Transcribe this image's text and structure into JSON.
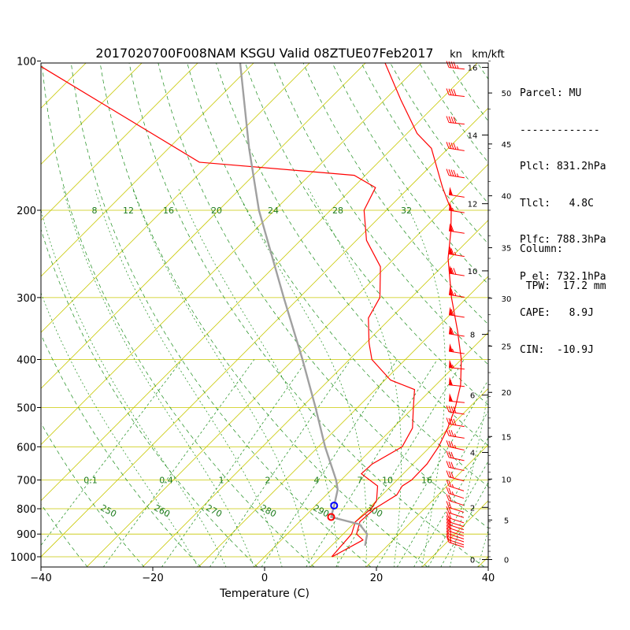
{
  "title": "2017020700F008NAM KSGU Valid 08ZTUE07Feb2017",
  "unit_kn": "kn",
  "unit_kmkft": "km/kft",
  "xlabel": "Temperature (C)",
  "parcel_panel": {
    "header": "Parcel: MU",
    "rule": "-------------",
    "lines": [
      "Plcl: 831.2hPa",
      "Tlcl:   4.8C",
      "Plfc: 788.3hPa",
      "P_el: 732.1hPa",
      "CAPE:   8.9J",
      "CIN:  -10.9J"
    ]
  },
  "column_panel": {
    "header": "Column:",
    "line": " TPW:  17.2 mm"
  },
  "colors": {
    "temperature": "#ff0000",
    "dewpoint": "#ff0000",
    "parcel": "#a0a0a0",
    "isotherm": "#c8c800",
    "dry_adiabat": "#1a8c1a",
    "moist_adiabat": "#1a8c1a",
    "mixing_ratio": "#1a8c1a",
    "lcl_marker": "#ff0000",
    "lfc_marker": "#0000ff"
  },
  "chart_data": {
    "type": "line",
    "subtype": "skew-T log-P diagram",
    "xlim": [
      -40,
      40
    ],
    "ylim_pressure": [
      1050,
      100
    ],
    "x_ticks": [
      "−40",
      "−20",
      "0",
      "20",
      "40"
    ],
    "x_tick_values": [
      -40,
      -20,
      0,
      20,
      40
    ],
    "pressure_ticks": [
      100,
      200,
      300,
      400,
      500,
      600,
      700,
      800,
      900,
      1000
    ],
    "km_ticks": [
      {
        "label": "0",
        "p": 1013
      },
      {
        "label": "2",
        "p": 795
      },
      {
        "label": "4",
        "p": 616
      },
      {
        "label": "6",
        "p": 472
      },
      {
        "label": "8",
        "p": 356
      },
      {
        "label": "10",
        "p": 265
      },
      {
        "label": "12",
        "p": 194
      },
      {
        "label": "14",
        "p": 141
      },
      {
        "label": "16",
        "p": 103
      }
    ],
    "kft_ticks": [
      {
        "label": "0",
        "p": 1013
      },
      {
        "label": "5",
        "p": 843
      },
      {
        "label": "10",
        "p": 697
      },
      {
        "label": "15",
        "p": 572
      },
      {
        "label": "20",
        "p": 466
      },
      {
        "label": "25",
        "p": 376
      },
      {
        "label": "30",
        "p": 301
      },
      {
        "label": "35",
        "p": 238
      },
      {
        "label": "40",
        "p": 187
      },
      {
        "label": "45",
        "p": 147
      },
      {
        "label": "50",
        "p": 116
      }
    ],
    "mixing_ratio_labels_upper": {
      "p": 200,
      "values": [
        "8",
        "12",
        "16",
        "20",
        "24",
        "28",
        "32"
      ]
    },
    "mixing_ratio_labels_lower": {
      "p": 700,
      "values": [
        "0.1",
        "0.4",
        "1",
        "2",
        "4",
        "7",
        "10",
        "16"
      ]
    },
    "dry_adiabat_labels": [
      "250",
      "260",
      "270",
      "280",
      "290",
      "300"
    ],
    "series": [
      {
        "name": "temperature",
        "points": [
          [
            1000,
            12.1
          ],
          [
            925,
            14.6
          ],
          [
            900,
            12.4
          ],
          [
            850,
            10.8
          ],
          [
            800,
            11.1
          ],
          [
            750,
            12.6
          ],
          [
            720,
            12.0
          ],
          [
            700,
            12.6
          ],
          [
            650,
            12.5
          ],
          [
            600,
            11.5
          ],
          [
            550,
            9.8
          ],
          [
            500,
            7.5
          ],
          [
            450,
            4.4
          ],
          [
            400,
            0.0
          ],
          [
            350,
            -5.8
          ],
          [
            300,
            -12.8
          ],
          [
            250,
            -20.4
          ],
          [
            220,
            -24.8
          ],
          [
            200,
            -28.4
          ],
          [
            180,
            -34.0
          ],
          [
            150,
            -43.0
          ],
          [
            140,
            -48.2
          ],
          [
            120,
            -57.0
          ],
          [
            100,
            -67.0
          ]
        ]
      },
      {
        "name": "dewpoint",
        "points": [
          [
            1000,
            12.0
          ],
          [
            900,
            11.5
          ],
          [
            850,
            10.0
          ],
          [
            800,
            10.5
          ],
          [
            770,
            10.0
          ],
          [
            720,
            7.6
          ],
          [
            680,
            2.5
          ],
          [
            650,
            2.7
          ],
          [
            600,
            5.0
          ],
          [
            550,
            3.5
          ],
          [
            500,
            0.0
          ],
          [
            460,
            -3.0
          ],
          [
            440,
            -9.0
          ],
          [
            400,
            -16.0
          ],
          [
            370,
            -19.5
          ],
          [
            330,
            -24.0
          ],
          [
            300,
            -25.6
          ],
          [
            260,
            -31.0
          ],
          [
            230,
            -38.2
          ],
          [
            200,
            -44.0
          ],
          [
            180,
            -46.0
          ],
          [
            170,
            -52.0
          ],
          [
            160,
            -82.0
          ],
          [
            100,
            -130.0
          ]
        ]
      },
      {
        "name": "parcel",
        "points": [
          [
            950,
            16.0
          ],
          [
            900,
            14.3
          ],
          [
            860,
            11.2
          ],
          [
            831.2,
            4.8
          ],
          [
            788.3,
            3.3
          ],
          [
            732.1,
            1.1
          ],
          [
            700,
            -0.9
          ],
          [
            600,
            -8.8
          ],
          [
            500,
            -17.5
          ],
          [
            400,
            -28.4
          ],
          [
            300,
            -42.8
          ],
          [
            200,
            -62.8
          ],
          [
            150,
            -75.6
          ],
          [
            100,
            -92.8
          ]
        ]
      }
    ],
    "markers": [
      {
        "name": "LCL",
        "p": 831.2,
        "t": 4.8
      },
      {
        "name": "LFC",
        "p": 788.3,
        "t": 3.3
      }
    ],
    "wind_barbs": [
      {
        "p": 103,
        "speed": 45,
        "dir": 280
      },
      {
        "p": 117,
        "speed": 40,
        "dir": 280
      },
      {
        "p": 133,
        "speed": 40,
        "dir": 280
      },
      {
        "p": 150,
        "speed": 45,
        "dir": 285
      },
      {
        "p": 170,
        "speed": 45,
        "dir": 285
      },
      {
        "p": 186,
        "speed": 50,
        "dir": 285
      },
      {
        "p": 200,
        "speed": 55,
        "dir": 285
      },
      {
        "p": 220,
        "speed": 60,
        "dir": 285
      },
      {
        "p": 245,
        "speed": 65,
        "dir": 285
      },
      {
        "p": 268,
        "speed": 70,
        "dir": 285
      },
      {
        "p": 296,
        "speed": 65,
        "dir": 285
      },
      {
        "p": 325,
        "speed": 60,
        "dir": 285
      },
      {
        "p": 355,
        "speed": 60,
        "dir": 285
      },
      {
        "p": 385,
        "speed": 55,
        "dir": 285
      },
      {
        "p": 415,
        "speed": 55,
        "dir": 280
      },
      {
        "p": 450,
        "speed": 50,
        "dir": 280
      },
      {
        "p": 485,
        "speed": 50,
        "dir": 280
      },
      {
        "p": 510,
        "speed": 40,
        "dir": 285
      },
      {
        "p": 540,
        "speed": 40,
        "dir": 285
      },
      {
        "p": 570,
        "speed": 35,
        "dir": 285
      },
      {
        "p": 600,
        "speed": 35,
        "dir": 290
      },
      {
        "p": 630,
        "speed": 30,
        "dir": 290
      },
      {
        "p": 660,
        "speed": 30,
        "dir": 290
      },
      {
        "p": 690,
        "speed": 30,
        "dir": 295
      },
      {
        "p": 720,
        "speed": 25,
        "dir": 300
      },
      {
        "p": 745,
        "speed": 25,
        "dir": 300
      },
      {
        "p": 770,
        "speed": 20,
        "dir": 300
      },
      {
        "p": 795,
        "speed": 20,
        "dir": 300
      },
      {
        "p": 815,
        "speed": 20,
        "dir": 300
      },
      {
        "p": 835,
        "speed": 20,
        "dir": 300
      },
      {
        "p": 850,
        "speed": 20,
        "dir": 300
      },
      {
        "p": 862,
        "speed": 20,
        "dir": 300
      },
      {
        "p": 875,
        "speed": 20,
        "dir": 300
      },
      {
        "p": 888,
        "speed": 20,
        "dir": 300
      },
      {
        "p": 900,
        "speed": 15,
        "dir": 300
      },
      {
        "p": 912,
        "speed": 15,
        "dir": 300
      },
      {
        "p": 925,
        "speed": 15,
        "dir": 300
      },
      {
        "p": 935,
        "speed": 15,
        "dir": 300
      }
    ]
  }
}
